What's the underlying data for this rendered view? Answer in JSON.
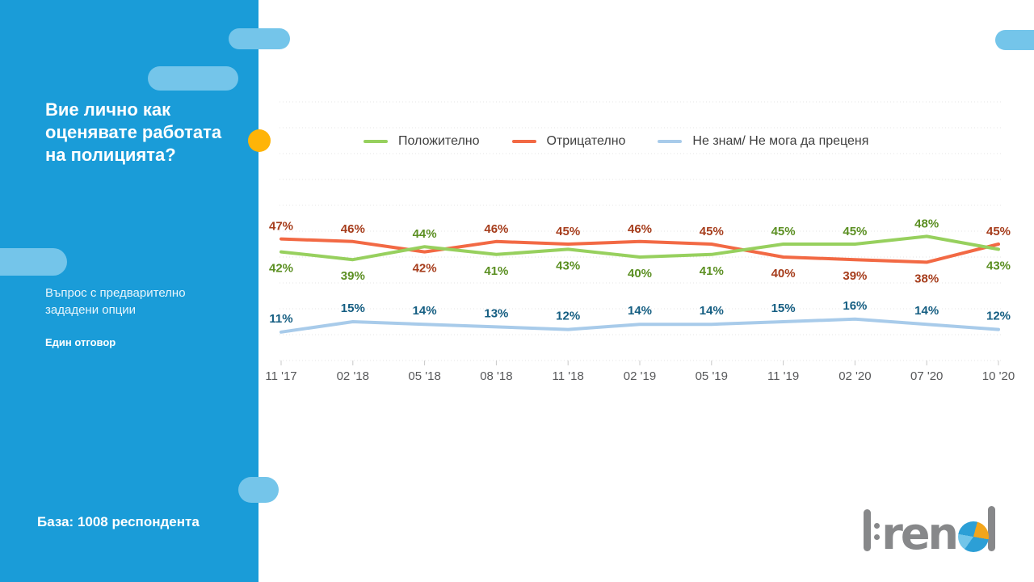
{
  "sidebar": {
    "title_lines": [
      "Вие лично как",
      "оценявате работата",
      "на полицията?"
    ],
    "subtitle_lines": [
      "Въпрос с предварително",
      "зададени опции"
    ],
    "answer_note": "Един отговор",
    "base_note": "База: 1008 респондента"
  },
  "brand": {
    "text": "trend"
  },
  "colors": {
    "sidebar_blue": "#1A9CD8",
    "decor_pill_blue": "#74C5EA",
    "accent_yellow": "#FFB407",
    "logo_gray": "#87888A",
    "axis_text_gray": "#58595B",
    "gridline_gray": "#E5E5E5"
  },
  "chart_data": {
    "type": "line",
    "categories": [
      "11 '17",
      "02 '18",
      "05 '18",
      "08 '18",
      "11 '18",
      "02 '19",
      "05 '19",
      "11 '19",
      "02 '20",
      "07 '20",
      "10 '20"
    ],
    "series": [
      {
        "name": "Положително",
        "color": "#97D05E",
        "label_color": "#5B8F22",
        "values": [
          42,
          39,
          44,
          41,
          43,
          40,
          41,
          45,
          45,
          48,
          43
        ]
      },
      {
        "name": "Отрицателно",
        "color": "#F26944",
        "label_color": "#A63D1C",
        "values": [
          47,
          46,
          42,
          46,
          45,
          46,
          45,
          40,
          39,
          38,
          45
        ]
      },
      {
        "name": "Не знам/ Не мога да преценя",
        "color": "#A8CBEA",
        "label_color": "#155E82",
        "values": [
          11,
          15,
          14,
          13,
          12,
          14,
          14,
          15,
          16,
          14,
          12
        ]
      }
    ],
    "unit": "%",
    "ylim": [
      0,
      100
    ],
    "grid": "horizontal-dotted-10pct",
    "legend_position": "top"
  }
}
